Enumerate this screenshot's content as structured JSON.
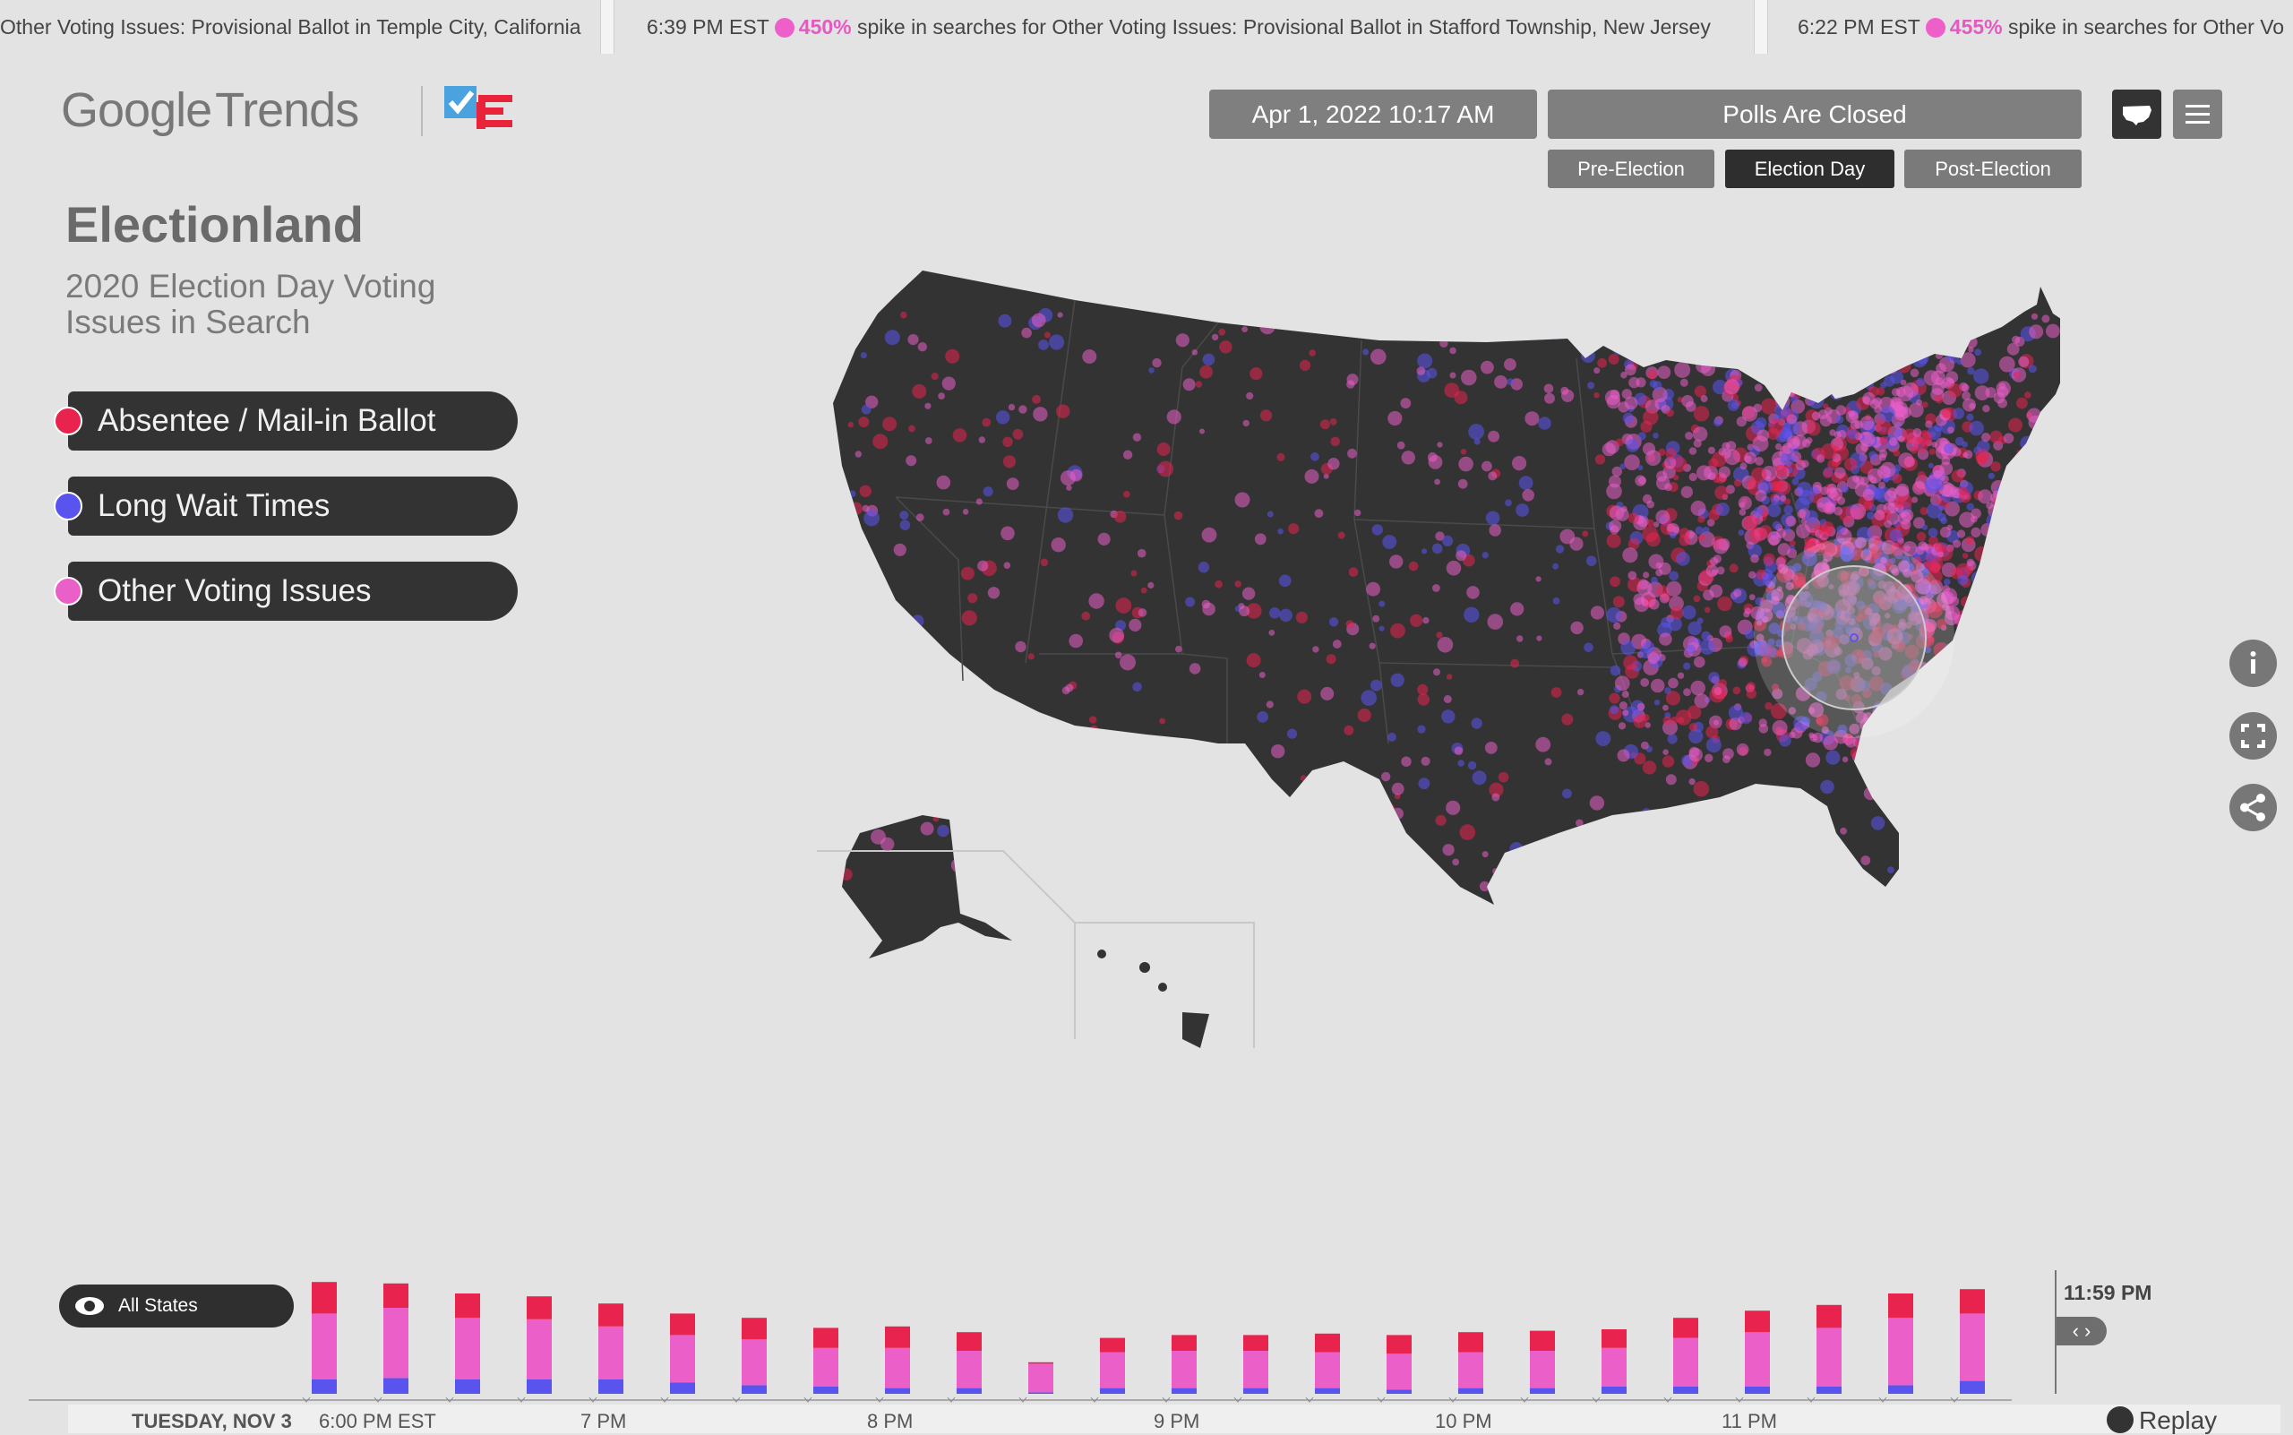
{
  "ticker": {
    "items": [
      {
        "pre": "",
        "pct": "",
        "text": "Other Voting Issues: Provisional Ballot in Temple City, California"
      },
      {
        "pre": "6:39 PM EST",
        "pct": "450%",
        "text": "spike in searches for Other Voting Issues: Provisional Ballot in Stafford Township, New Jersey"
      },
      {
        "pre": "6:22 PM EST",
        "pct": "455%",
        "text": "spike in searches for Other Vo"
      }
    ]
  },
  "brand": {
    "google": "Google",
    "trends": "Trends"
  },
  "header": {
    "datetime": "Apr 1, 2022 10:17 AM",
    "polls_status": "Polls Are Closed",
    "phases": [
      "Pre-Election",
      "Election Day",
      "Post-Election"
    ],
    "active_phase": "Election Day",
    "map_view_icon": "us-map-icon",
    "menu_icon": "hamburger-menu-icon"
  },
  "panel": {
    "title": "Electionland",
    "subtitle": "2020 Election Day Voting Issues in Search",
    "legend": [
      {
        "label": "Absentee / Mail-in Ballot",
        "color": "#e8234e"
      },
      {
        "label": "Long Wait Times",
        "color": "#5a54ee"
      },
      {
        "label": "Other Voting Issues",
        "color": "#ea5fc8"
      }
    ]
  },
  "side_buttons": [
    "info-icon",
    "fullscreen-icon",
    "share-icon"
  ],
  "timeline": {
    "filter_label": "All States",
    "day_label": "TUESDAY, NOV 3",
    "hour_labels": [
      "6:00 PM EST",
      "7 PM",
      "8 PM",
      "9 PM",
      "10 PM",
      "11 PM"
    ],
    "current_time": "11:59 PM",
    "knob": "‹ ›",
    "replay_label": "Replay"
  },
  "colors": {
    "absentee": "#e8234e",
    "wait": "#5a54ee",
    "other": "#ea5fc8",
    "map": "#333333"
  },
  "chart_data": {
    "type": "bar",
    "stacked": true,
    "series": [
      {
        "name": "Long Wait Times",
        "values": [
          1.0,
          1.1,
          1.0,
          1.0,
          1.0,
          0.8,
          0.6,
          0.5,
          0.4,
          0.4,
          0.1,
          0.4,
          0.4,
          0.4,
          0.4,
          0.3,
          0.4,
          0.4,
          0.5,
          0.5,
          0.5,
          0.5,
          0.6,
          0.9
        ]
      },
      {
        "name": "Other Voting Issues",
        "values": [
          4.6,
          4.9,
          4.3,
          4.2,
          3.7,
          3.3,
          3.2,
          2.7,
          2.8,
          2.6,
          2.0,
          2.5,
          2.6,
          2.6,
          2.5,
          2.5,
          2.5,
          2.6,
          2.7,
          3.4,
          3.8,
          4.1,
          4.7,
          4.7
        ]
      },
      {
        "name": "Absentee / Mail-in Ballot",
        "values": [
          2.2,
          1.7,
          1.7,
          1.6,
          1.6,
          1.5,
          1.5,
          1.4,
          1.5,
          1.3,
          0.1,
          1.0,
          1.1,
          1.1,
          1.3,
          1.3,
          1.4,
          1.4,
          1.3,
          1.4,
          1.5,
          1.6,
          1.7,
          1.7
        ]
      }
    ]
  }
}
